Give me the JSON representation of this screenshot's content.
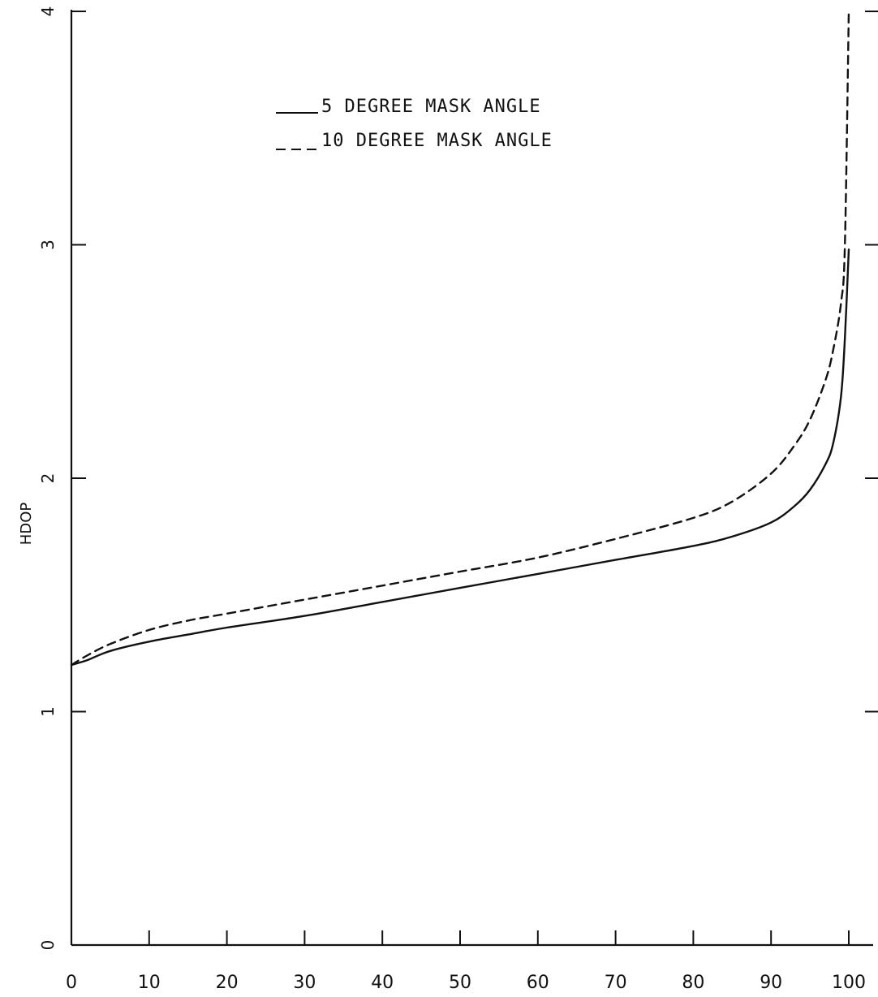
{
  "chart_data": {
    "type": "line",
    "title": "",
    "xlabel": "",
    "ylabel": "HDOP",
    "xlim": [
      0,
      100
    ],
    "ylim": [
      0,
      4
    ],
    "x_ticks": [
      {
        "value": 0,
        "label": "0"
      },
      {
        "value": 10,
        "label": "10"
      },
      {
        "value": 20,
        "label": "20"
      },
      {
        "value": 30,
        "label": "30"
      },
      {
        "value": 40,
        "label": "40"
      },
      {
        "value": 50,
        "label": "50"
      },
      {
        "value": 60,
        "label": "60"
      },
      {
        "value": 70,
        "label": "70"
      },
      {
        "value": 80,
        "label": "80"
      },
      {
        "value": 90,
        "label": "90"
      },
      {
        "value": 100,
        "label": "100"
      }
    ],
    "y_ticks": [
      {
        "value": 0,
        "label": "0"
      },
      {
        "value": 1,
        "label": "1"
      },
      {
        "value": 2,
        "label": "2"
      },
      {
        "value": 3,
        "label": "3"
      },
      {
        "value": 4,
        "label": "4"
      }
    ],
    "grid": false,
    "legend_position": "top-center",
    "series": [
      {
        "name": "5 DEGREE MASK ANGLE",
        "legend_label": "5 DEGREE MASK ANGLE",
        "dash": "solid",
        "color": "#111111",
        "x": [
          0,
          2,
          5,
          10,
          15,
          20,
          30,
          40,
          50,
          60,
          70,
          80,
          85,
          90,
          93,
          95,
          97,
          98,
          99,
          99.5,
          100
        ],
        "y": [
          1.2,
          1.22,
          1.26,
          1.3,
          1.33,
          1.36,
          1.41,
          1.47,
          1.53,
          1.59,
          1.65,
          1.71,
          1.75,
          1.81,
          1.88,
          1.95,
          2.06,
          2.15,
          2.35,
          2.6,
          2.98
        ]
      },
      {
        "name": "10 DEGREE MASK ANGLE",
        "legend_label": "10 DEGREE MASK ANGLE",
        "dash": "dashed",
        "color": "#111111",
        "x": [
          0,
          2,
          5,
          10,
          15,
          20,
          30,
          40,
          50,
          60,
          70,
          80,
          85,
          90,
          93,
          95,
          97,
          98,
          99,
          99.5,
          100
        ],
        "y": [
          1.2,
          1.24,
          1.29,
          1.35,
          1.39,
          1.42,
          1.48,
          1.54,
          1.6,
          1.66,
          1.74,
          1.83,
          1.9,
          2.02,
          2.14,
          2.25,
          2.42,
          2.55,
          2.75,
          3.0,
          4.0
        ]
      }
    ]
  }
}
